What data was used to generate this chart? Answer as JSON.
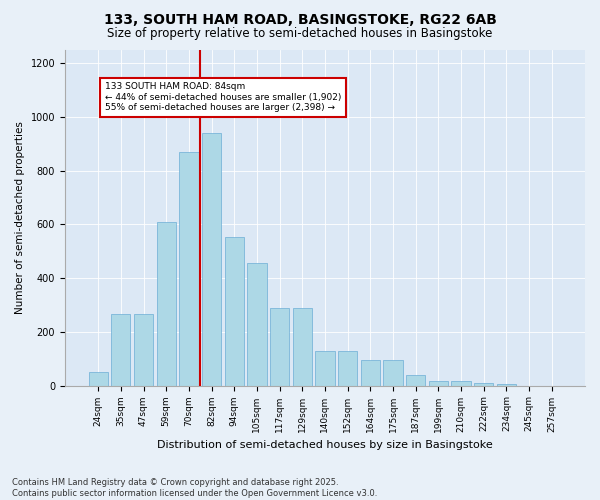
{
  "title1": "133, SOUTH HAM ROAD, BASINGSTOKE, RG22 6AB",
  "title2": "Size of property relative to semi-detached houses in Basingstoke",
  "xlabel": "Distribution of semi-detached houses by size in Basingstoke",
  "ylabel": "Number of semi-detached properties",
  "categories": [
    "24sqm",
    "35sqm",
    "47sqm",
    "59sqm",
    "70sqm",
    "82sqm",
    "94sqm",
    "105sqm",
    "117sqm",
    "129sqm",
    "140sqm",
    "152sqm",
    "164sqm",
    "175sqm",
    "187sqm",
    "199sqm",
    "210sqm",
    "222sqm",
    "234sqm",
    "245sqm",
    "257sqm"
  ],
  "values": [
    50,
    265,
    265,
    610,
    870,
    940,
    555,
    455,
    290,
    290,
    130,
    130,
    95,
    95,
    38,
    18,
    18,
    8,
    4,
    0,
    0
  ],
  "bar_color": "#add8e6",
  "bar_edge_color": "#6baed6",
  "vline_x_index": 5,
  "vline_color": "#cc0000",
  "annotation_title": "133 SOUTH HAM ROAD: 84sqm",
  "annotation_line1": "← 44% of semi-detached houses are smaller (1,902)",
  "annotation_line2": "55% of semi-detached houses are larger (2,398) →",
  "annotation_box_facecolor": "#ffffff",
  "annotation_box_edgecolor": "#cc0000",
  "bg_color": "#e8f0f8",
  "plot_bg_color": "#dce8f5",
  "ylim": [
    0,
    1250
  ],
  "yticks": [
    0,
    200,
    400,
    600,
    800,
    1000,
    1200
  ],
  "footer_line1": "Contains HM Land Registry data © Crown copyright and database right 2025.",
  "footer_line2": "Contains public sector information licensed under the Open Government Licence v3.0."
}
